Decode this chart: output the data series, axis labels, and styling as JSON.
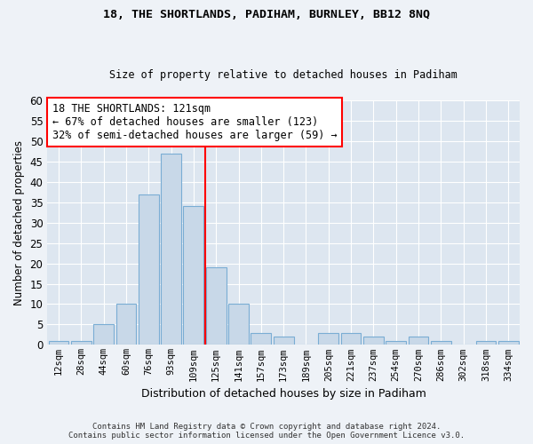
{
  "title1": "18, THE SHORTLANDS, PADIHAM, BURNLEY, BB12 8NQ",
  "title2": "Size of property relative to detached houses in Padiham",
  "xlabel": "Distribution of detached houses by size in Padiham",
  "ylabel": "Number of detached properties",
  "bar_labels": [
    "12sqm",
    "28sqm",
    "44sqm",
    "60sqm",
    "76sqm",
    "93sqm",
    "109sqm",
    "125sqm",
    "141sqm",
    "157sqm",
    "173sqm",
    "189sqm",
    "205sqm",
    "221sqm",
    "237sqm",
    "254sqm",
    "270sqm",
    "286sqm",
    "302sqm",
    "318sqm",
    "334sqm"
  ],
  "bar_values": [
    1,
    1,
    5,
    10,
    37,
    47,
    34,
    19,
    10,
    3,
    2,
    0,
    3,
    3,
    2,
    1,
    2,
    1,
    0,
    1,
    1
  ],
  "bar_color": "#c8d8e8",
  "bar_edge_color": "#7aadd4",
  "vline_x": 6.5,
  "vline_color": "red",
  "annotation_title": "18 THE SHORTLANDS: 121sqm",
  "annotation_line1": "← 67% of detached houses are smaller (123)",
  "annotation_line2": "32% of semi-detached houses are larger (59) →",
  "annotation_box_color": "white",
  "annotation_box_edge": "red",
  "ylim": [
    0,
    60
  ],
  "yticks": [
    0,
    5,
    10,
    15,
    20,
    25,
    30,
    35,
    40,
    45,
    50,
    55,
    60
  ],
  "footer1": "Contains HM Land Registry data © Crown copyright and database right 2024.",
  "footer2": "Contains public sector information licensed under the Open Government Licence v3.0.",
  "bg_color": "#eef2f7",
  "plot_bg_color": "#dde6f0",
  "grid_color": "white"
}
